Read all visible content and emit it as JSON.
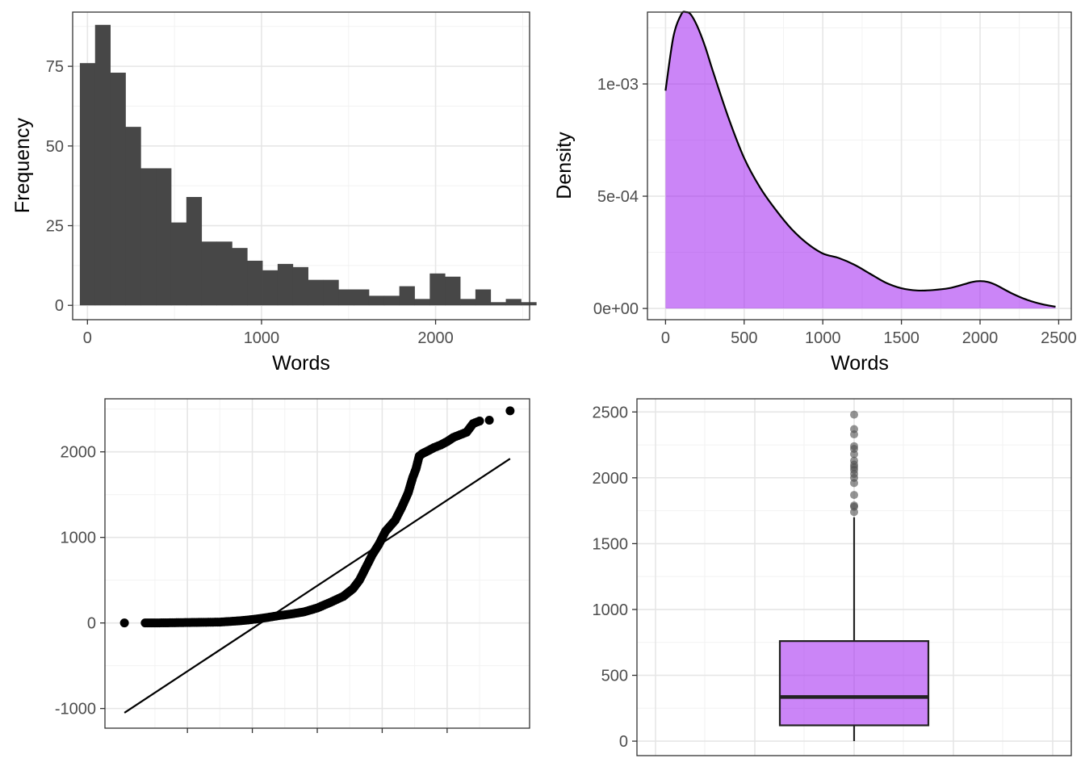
{
  "colors": {
    "bar_fill": "#474747",
    "density_fill": "#a020f0",
    "box_fill": "#a020f0",
    "grid_major": "#e6e6e6",
    "grid_minor": "#f2f2f2",
    "point": "#000000",
    "line": "#000000",
    "outlier": "#4d4d4d"
  },
  "chart_data": [
    {
      "type": "bar",
      "subtype": "histogram",
      "xlabel": "Words",
      "ylabel": "Frequency",
      "xlim": [
        -85,
        2540
      ],
      "ylim": [
        -4.5,
        92
      ],
      "x_ticks": [
        0,
        1000,
        2000
      ],
      "x_tick_labels": [
        "0",
        "1000",
        "2000"
      ],
      "y_ticks": [
        0,
        25,
        50,
        75
      ],
      "y_tick_labels": [
        "0",
        "25",
        "50",
        "75"
      ],
      "grid": true,
      "bin_width": 87.4,
      "bin_start": -43.7,
      "values": [
        76,
        88,
        73,
        56,
        43,
        43,
        26,
        34,
        20,
        20,
        18,
        14,
        11,
        13,
        12,
        8,
        8,
        5,
        5,
        3,
        3,
        6,
        2,
        10,
        9,
        2,
        5,
        1,
        2,
        1
      ]
    },
    {
      "type": "area",
      "subtype": "density",
      "xlabel": "Words",
      "ylabel": "Density",
      "xlim": [
        -115,
        2580
      ],
      "ylim": [
        -5e-05,
        0.00132
      ],
      "x_ticks": [
        0,
        500,
        1000,
        1500,
        2000,
        2500
      ],
      "x_tick_labels": [
        "0",
        "500",
        "1000",
        "1500",
        "2000",
        "2500"
      ],
      "y_ticks": [
        0,
        0.0005,
        0.001
      ],
      "y_tick_labels": [
        "0e+00",
        "5e-04",
        "1e-03"
      ],
      "grid": true,
      "x": [
        0,
        50,
        100,
        130,
        160,
        200,
        250,
        300,
        400,
        500,
        600,
        700,
        800,
        900,
        1000,
        1100,
        1200,
        1300,
        1400,
        1500,
        1600,
        1700,
        1800,
        1900,
        1950,
        2000,
        2050,
        2100,
        2200,
        2300,
        2400,
        2480
      ],
      "y": [
        0.00097,
        0.00121,
        0.00131,
        0.00132,
        0.00131,
        0.00126,
        0.00117,
        0.00106,
        0.00085,
        0.00067,
        0.00054,
        0.00044,
        0.000355,
        0.00029,
        0.000245,
        0.000225,
        0.000195,
        0.000155,
        0.000115,
        9e-05,
        8e-05,
        8.2e-05,
        9e-05,
        0.000108,
        0.000118,
        0.000122,
        0.000118,
        0.000105,
        6.8e-05,
        3.8e-05,
        1.8e-05,
        8e-06
      ]
    },
    {
      "type": "scatter",
      "subtype": "qq-plot",
      "xlabel": "",
      "ylabel": "",
      "xlim": [
        -3.27,
        3.27
      ],
      "ylim": [
        -1230,
        2620
      ],
      "y_ticks": [
        -1000,
        0,
        1000,
        2000
      ],
      "y_tick_labels": [
        "-1000",
        "0",
        "1000",
        "2000"
      ],
      "x_ticks": [
        -2,
        -1,
        0,
        1,
        2
      ],
      "grid": true,
      "reference_line": {
        "x": [
          -2.97,
          2.97
        ],
        "y": [
          -1050,
          1920
        ]
      },
      "curve_points": [
        [
          -2.97,
          0
        ],
        [
          -2.65,
          0
        ],
        [
          -2.5,
          0
        ],
        [
          -2.3,
          2
        ],
        [
          -2.0,
          5
        ],
        [
          -1.5,
          10
        ],
        [
          -1.2,
          25
        ],
        [
          -1.0,
          40
        ],
        [
          -0.8,
          60
        ],
        [
          -0.6,
          85
        ],
        [
          -0.4,
          105
        ],
        [
          -0.2,
          130
        ],
        [
          0.0,
          175
        ],
        [
          0.2,
          240
        ],
        [
          0.4,
          310
        ],
        [
          0.55,
          400
        ],
        [
          0.65,
          500
        ],
        [
          0.75,
          650
        ],
        [
          0.85,
          800
        ],
        [
          0.95,
          920
        ],
        [
          1.05,
          1070
        ],
        [
          1.2,
          1200
        ],
        [
          1.3,
          1350
        ],
        [
          1.4,
          1520
        ],
        [
          1.47,
          1700
        ],
        [
          1.52,
          1800
        ],
        [
          1.57,
          1950
        ],
        [
          1.62,
          1980
        ],
        [
          1.7,
          2010
        ],
        [
          1.8,
          2050
        ],
        [
          1.9,
          2080
        ],
        [
          2.0,
          2120
        ],
        [
          2.1,
          2170
        ],
        [
          2.2,
          2200
        ],
        [
          2.3,
          2230
        ],
        [
          2.4,
          2330
        ],
        [
          2.5,
          2360
        ],
        [
          2.65,
          2370
        ],
        [
          2.97,
          2480
        ]
      ]
    },
    {
      "type": "boxplot",
      "xlabel": "",
      "ylabel": "",
      "ylim": [
        -110,
        2600
      ],
      "y_ticks": [
        0,
        500,
        1000,
        1500,
        2000,
        2500
      ],
      "y_tick_labels": [
        "0",
        "500",
        "1000",
        "1500",
        "2000",
        "2500"
      ],
      "grid": true,
      "whisker_low": 0,
      "q1": 120,
      "median": 335,
      "q3": 760,
      "whisker_high": 1700,
      "outliers": [
        1740,
        1780,
        1790,
        1870,
        1960,
        2000,
        2030,
        2060,
        2080,
        2100,
        2130,
        2180,
        2220,
        2240,
        2330,
        2370,
        2480
      ]
    }
  ]
}
